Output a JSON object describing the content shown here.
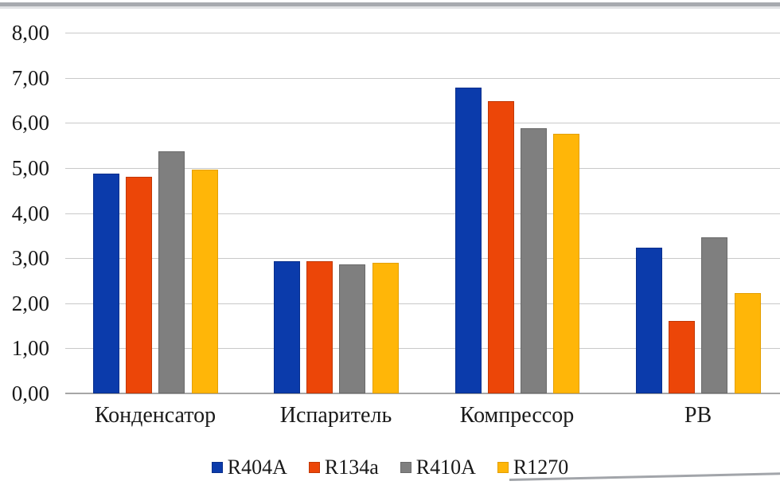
{
  "chart_data": {
    "type": "bar",
    "title": "",
    "xlabel": "",
    "ylabel": "",
    "categories": [
      "Конденсатор",
      "Испаритель",
      "Компрессор",
      "РВ"
    ],
    "series": [
      {
        "name": "R404A",
        "color": "#0b3bab",
        "border_color": "#082f8c",
        "values": [
          4.87,
          2.94,
          6.79,
          3.23
        ]
      },
      {
        "name": "R134a",
        "color": "#ec4608",
        "border_color": "#c13805",
        "values": [
          4.8,
          2.93,
          6.49,
          1.6
        ]
      },
      {
        "name": "R410A",
        "color": "#7f7f7f",
        "border_color": "#6a6a6a",
        "values": [
          5.37,
          2.87,
          5.89,
          3.46
        ]
      },
      {
        "name": "R1270",
        "color": "#ffb608",
        "border_color": "#e39f02",
        "values": [
          4.96,
          2.9,
          5.76,
          2.22
        ]
      }
    ],
    "ylim": [
      0,
      8
    ],
    "y_ticks": [
      "0,00",
      "1,00",
      "2,00",
      "3,00",
      "4,00",
      "5,00",
      "6,00",
      "7,00",
      "8,00"
    ],
    "grid": true,
    "gridline_color": "#c9c9c9",
    "axis_line_color": "#a6a6a6",
    "legend_position": "bottom"
  }
}
